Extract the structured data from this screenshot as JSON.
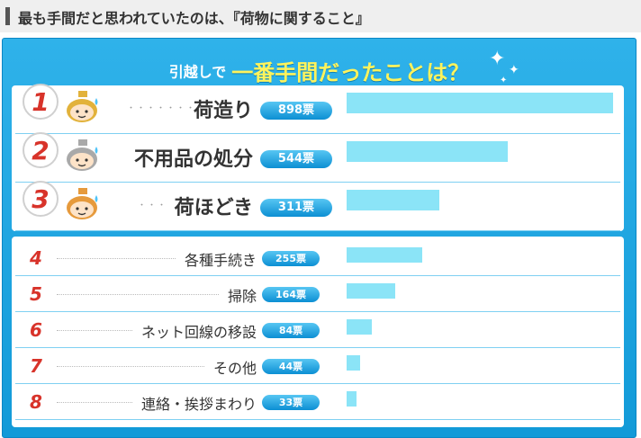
{
  "heading": {
    "text": "最も手間だと思われていたのは、『荷物に関すること』"
  },
  "banner": {
    "prefix": "引越しで",
    "main": "一番手間だったことは？"
  },
  "icons": {
    "sparkle": "sparkle-icon",
    "face": "sweating-face-icon"
  },
  "colors": {
    "panel": "#129ad8",
    "bar": "#8be4f7",
    "rank_number": "#d8332a",
    "pill": "#0c8fd3"
  },
  "chart_data": {
    "type": "bar",
    "title": "引越しで 一番手間だったことは？",
    "unit": "票",
    "categories": [
      "荷造り",
      "不用品の処分",
      "荷ほどき",
      "各種手続き",
      "掃除",
      "ネット回線の移設",
      "その他",
      "連絡・挨拶まわり"
    ],
    "values": [
      898,
      544,
      311,
      255,
      164,
      84,
      44,
      33
    ],
    "ranks": [
      "1",
      "2",
      "3",
      "4",
      "5",
      "6",
      "7",
      "8"
    ],
    "value_labels": [
      "898票",
      "544票",
      "311票",
      "255票",
      "164票",
      "84票",
      "44票",
      "33票"
    ],
    "medal_colors": [
      "#e2b23b",
      "#a9a9a9",
      "#e69a3c"
    ]
  }
}
